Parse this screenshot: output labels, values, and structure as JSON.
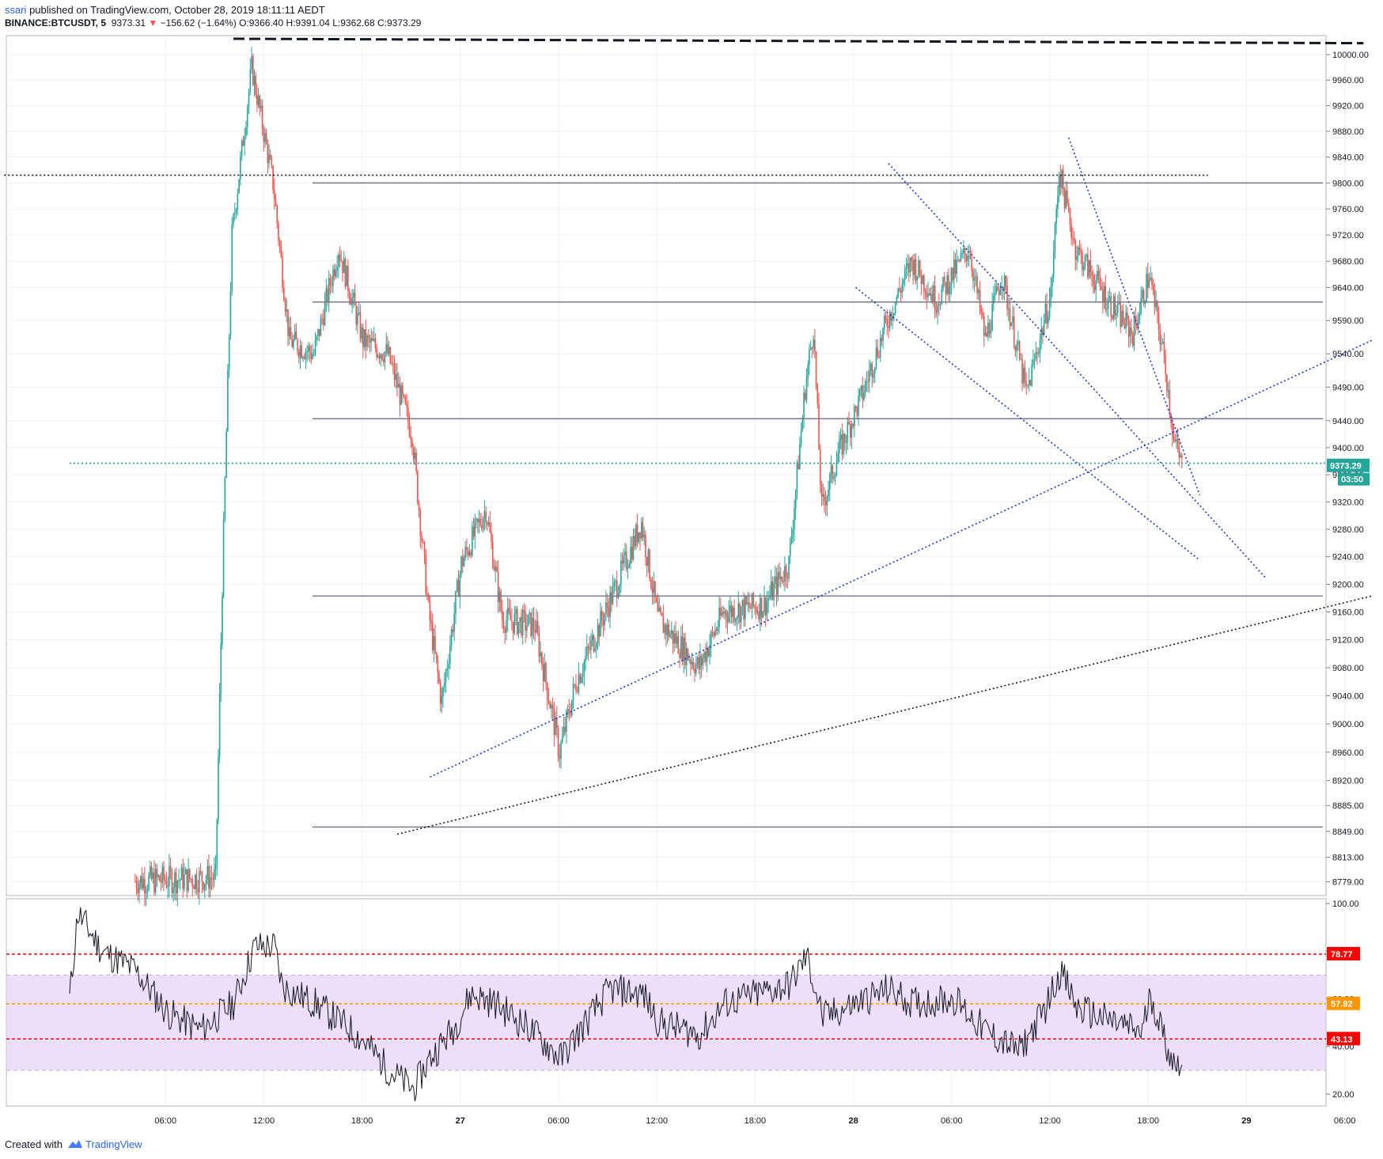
{
  "header": {
    "author": "ssari",
    "published": " published on TradingView.com, October 28, 2019 18:11:11 AEDT",
    "symbol": "BINANCE:BTCUSDT, 5",
    "last": "9373.31",
    "arrow": "▼",
    "change": "−156.62 (−1.64%)",
    "o_label": "O:",
    "o": "9366.40",
    "h_label": "H:",
    "h": "9391.04",
    "l_label": "L:",
    "l": "9362.68",
    "c_label": "C:",
    "c": "9373.29"
  },
  "footer": {
    "created": "Created with ",
    "brand": "TradingView",
    "logo_icon": "tradingview-cloud-icon"
  },
  "colors": {
    "up": "#26a69a",
    "down": "#ef5350",
    "trend": "#1e34d6",
    "level": "#787b86",
    "rsi_band": "#e6d1f7",
    "rsi_line": "#131722",
    "rsi_hi": "#ff0000",
    "rsi_mid": "#ff9800"
  },
  "chart_data": [
    {
      "type": "candlestick",
      "symbol": "BINANCE:BTCUSDT",
      "interval": "5",
      "x_ticks": [
        "06:00",
        "12:00",
        "18:00",
        "27",
        "06:00",
        "12:00",
        "18:00",
        "28",
        "06:00",
        "12:00",
        "18:00",
        "29",
        "06:00"
      ],
      "y_ticks": [
        "10000.00",
        "9960.00",
        "9920.00",
        "9880.00",
        "9840.00",
        "9800.00",
        "9760.00",
        "9720.00",
        "9680.00",
        "9640.00",
        "9590.00",
        "9540.00",
        "9490.00",
        "9440.00",
        "9400.00",
        "9360.00",
        "9320.00",
        "9280.00",
        "9240.00",
        "9200.00",
        "9160.00",
        "9120.00",
        "9080.00",
        "9040.00",
        "9000.00",
        "8960.00",
        "8920.00",
        "8885.00",
        "8849.00",
        "8813.00",
        "8779.00"
      ],
      "y_range": [
        8760,
        10030
      ],
      "current_price": "9373.29",
      "countdown": "03:50",
      "key_points_time_hours_from_26_00": [
        [
          4.0,
          8780
        ],
        [
          9.0,
          8785
        ],
        [
          9.4,
          9200
        ],
        [
          10.0,
          9720
        ],
        [
          11.2,
          9980
        ],
        [
          12.5,
          9800
        ],
        [
          13.5,
          9560
        ],
        [
          15.0,
          9540
        ],
        [
          16.5,
          9700
        ],
        [
          18.0,
          9560
        ],
        [
          19.5,
          9540
        ],
        [
          21.0,
          9420
        ],
        [
          22.0,
          9160
        ],
        [
          22.8,
          9030
        ],
        [
          24.0,
          9230
        ],
        [
          25.5,
          9310
        ],
        [
          26.5,
          9150
        ],
        [
          28.5,
          9140
        ],
        [
          30.0,
          8960
        ],
        [
          31.0,
          9060
        ],
        [
          33.5,
          9200
        ],
        [
          35.0,
          9290
        ],
        [
          36.0,
          9150
        ],
        [
          38.5,
          9080
        ],
        [
          40.0,
          9160
        ],
        [
          42.5,
          9170
        ],
        [
          44.0,
          9230
        ],
        [
          45.0,
          9490
        ],
        [
          45.5,
          9580
        ],
        [
          46.0,
          9310
        ],
        [
          47.0,
          9390
        ],
        [
          48.5,
          9480
        ],
        [
          50.0,
          9590
        ],
        [
          51.5,
          9680
        ],
        [
          53.0,
          9620
        ],
        [
          55.0,
          9700
        ],
        [
          56.0,
          9560
        ],
        [
          57.0,
          9660
        ],
        [
          58.5,
          9480
        ],
        [
          60.0,
          9630
        ],
        [
          60.5,
          9820
        ],
        [
          61.5,
          9700
        ],
        [
          63.5,
          9620
        ],
        [
          65.0,
          9570
        ],
        [
          66.0,
          9660
        ],
        [
          67.0,
          9520
        ],
        [
          67.5,
          9410
        ],
        [
          68.0,
          9373
        ]
      ],
      "levels": [
        9812,
        9618,
        9443,
        9183,
        8855
      ],
      "trendlines": [
        {
          "from": [
            -4.0,
            9812
          ],
          "to": [
            69.5,
            9812
          ],
          "style": "dotted",
          "color": "black"
        },
        {
          "from": [
            10.0,
            10025
          ],
          "to": [
            79.0,
            10018
          ],
          "style": "dashed",
          "color": "black"
        },
        {
          "from": [
            0,
            9377
          ],
          "to": [
            79.5,
            9377
          ],
          "style": "dotted",
          "color": "teal"
        },
        {
          "from": [
            22.0,
            8925
          ],
          "to": [
            79.5,
            9560
          ],
          "style": "dotted",
          "color": "blue"
        },
        {
          "from": [
            50.0,
            9830
          ],
          "to": [
            73.0,
            9210
          ],
          "style": "dotted",
          "color": "blue"
        },
        {
          "from": [
            48.0,
            9640
          ],
          "to": [
            69.0,
            9235
          ],
          "style": "dotted",
          "color": "blue"
        },
        {
          "from": [
            61.0,
            9870
          ],
          "to": [
            69.0,
            9330
          ],
          "style": "dotted",
          "color": "blue"
        },
        {
          "from": [
            20.0,
            8845
          ],
          "to": [
            79.5,
            9183
          ],
          "style": "dotted",
          "color": "black"
        }
      ]
    },
    {
      "type": "line",
      "indicator": "RSI",
      "y_ticks": [
        "100.00",
        "80.00",
        "60.00",
        "40.00",
        "20.00"
      ],
      "y_range": [
        15,
        102
      ],
      "band": [
        30,
        70
      ],
      "lines": [
        78.77,
        57.92,
        43.13
      ],
      "labels": [
        "78.77",
        "57.92",
        "43.13"
      ],
      "key_points": [
        [
          0,
          60
        ],
        [
          0.5,
          96
        ],
        [
          2,
          80
        ],
        [
          4,
          72
        ],
        [
          6,
          54
        ],
        [
          8,
          47
        ],
        [
          10,
          58
        ],
        [
          11.3,
          82
        ],
        [
          12.5,
          82
        ],
        [
          13,
          65
        ],
        [
          15,
          58
        ],
        [
          17,
          48
        ],
        [
          18,
          42
        ],
        [
          19.5,
          30
        ],
        [
          21,
          22
        ],
        [
          22,
          35
        ],
        [
          23.5,
          48
        ],
        [
          24.5,
          62
        ],
        [
          26,
          58
        ],
        [
          28,
          48
        ],
        [
          30,
          35
        ],
        [
          31,
          45
        ],
        [
          33,
          64
        ],
        [
          35,
          62
        ],
        [
          36,
          50
        ],
        [
          38.5,
          45
        ],
        [
          40,
          58
        ],
        [
          42,
          62
        ],
        [
          44,
          66
        ],
        [
          45,
          78
        ],
        [
          46,
          52
        ],
        [
          48,
          58
        ],
        [
          50,
          64
        ],
        [
          51.5,
          58
        ],
        [
          54,
          60
        ],
        [
          56,
          46
        ],
        [
          58,
          38
        ],
        [
          59.5,
          55
        ],
        [
          60.5,
          72
        ],
        [
          61.5,
          56
        ],
        [
          63,
          52
        ],
        [
          65.5,
          46
        ],
        [
          66,
          62
        ],
        [
          67,
          40
        ],
        [
          67.5,
          32
        ],
        [
          68,
          36
        ]
      ]
    }
  ]
}
